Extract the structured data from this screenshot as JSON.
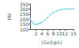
{
  "chart_data": {
    "type": "line",
    "x": [
      0,
      0.5,
      1,
      1.5,
      2,
      2.5,
      3,
      3.5,
      4,
      5,
      6,
      7,
      8,
      9,
      10,
      11,
      12,
      13,
      14,
      15
    ],
    "values": [
      200,
      175,
      158,
      150,
      148,
      150,
      155,
      162,
      170,
      190,
      215,
      245,
      265,
      280,
      290,
      295,
      298,
      300,
      300,
      302
    ],
    "color": "#8ad8e8",
    "marker": "dot",
    "line_style": "solid",
    "xlabel": "[Co](g/L)",
    "ylabel": "HV",
    "xlim": [
      0,
      15
    ],
    "ylim": [
      100,
      350
    ],
    "xticks": [
      2,
      4,
      6,
      8,
      10,
      12,
      15
    ],
    "yticks": [
      100,
      150,
      200,
      250,
      300,
      350
    ],
    "grid": false
  }
}
